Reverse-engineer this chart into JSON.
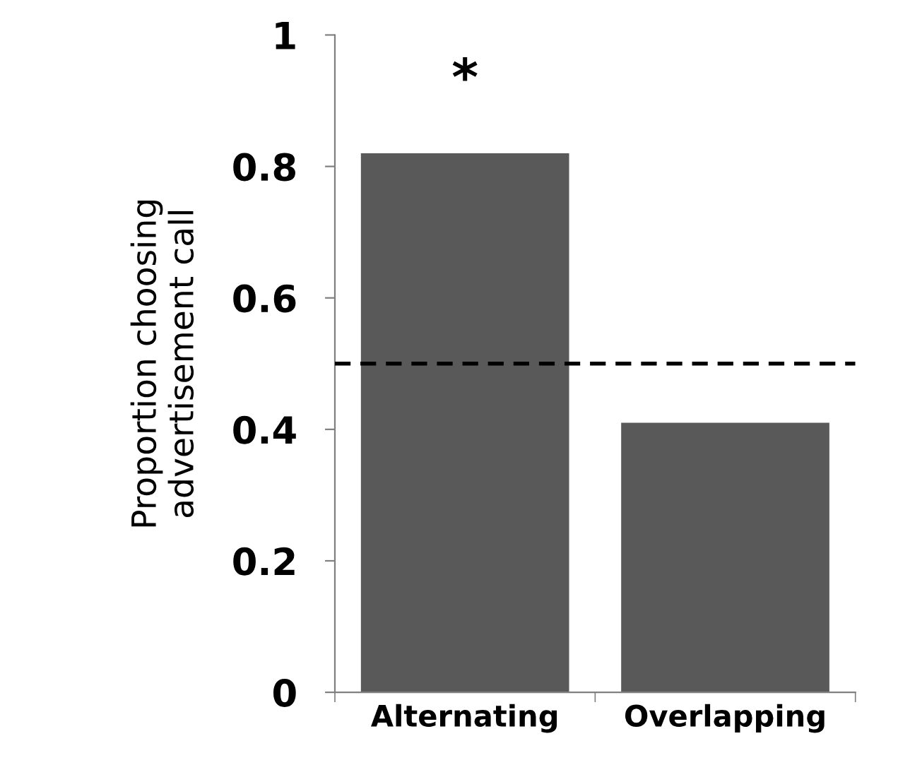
{
  "chart_data": {
    "type": "bar",
    "ylabel": "Proportion choosing\nadvertisement call",
    "categories": [
      "Alternating",
      "Overlapping"
    ],
    "values": [
      0.82,
      0.41
    ],
    "color": "#595959",
    "ylim": [
      0,
      1
    ],
    "yticks": [
      {
        "value": 0,
        "label": "0"
      },
      {
        "value": 0.2,
        "label": "0.2"
      },
      {
        "value": 0.4,
        "label": "0.4"
      },
      {
        "value": 0.6,
        "label": "0.6"
      },
      {
        "value": 0.8,
        "label": "0.8"
      },
      {
        "value": 1,
        "label": "1"
      }
    ],
    "ref_lines": [
      {
        "axis": "y",
        "value": 0.5,
        "color": "#000000",
        "line_style": "dashed"
      }
    ],
    "annotations": [
      "*"
    ],
    "grid": false,
    "legend": false
  }
}
